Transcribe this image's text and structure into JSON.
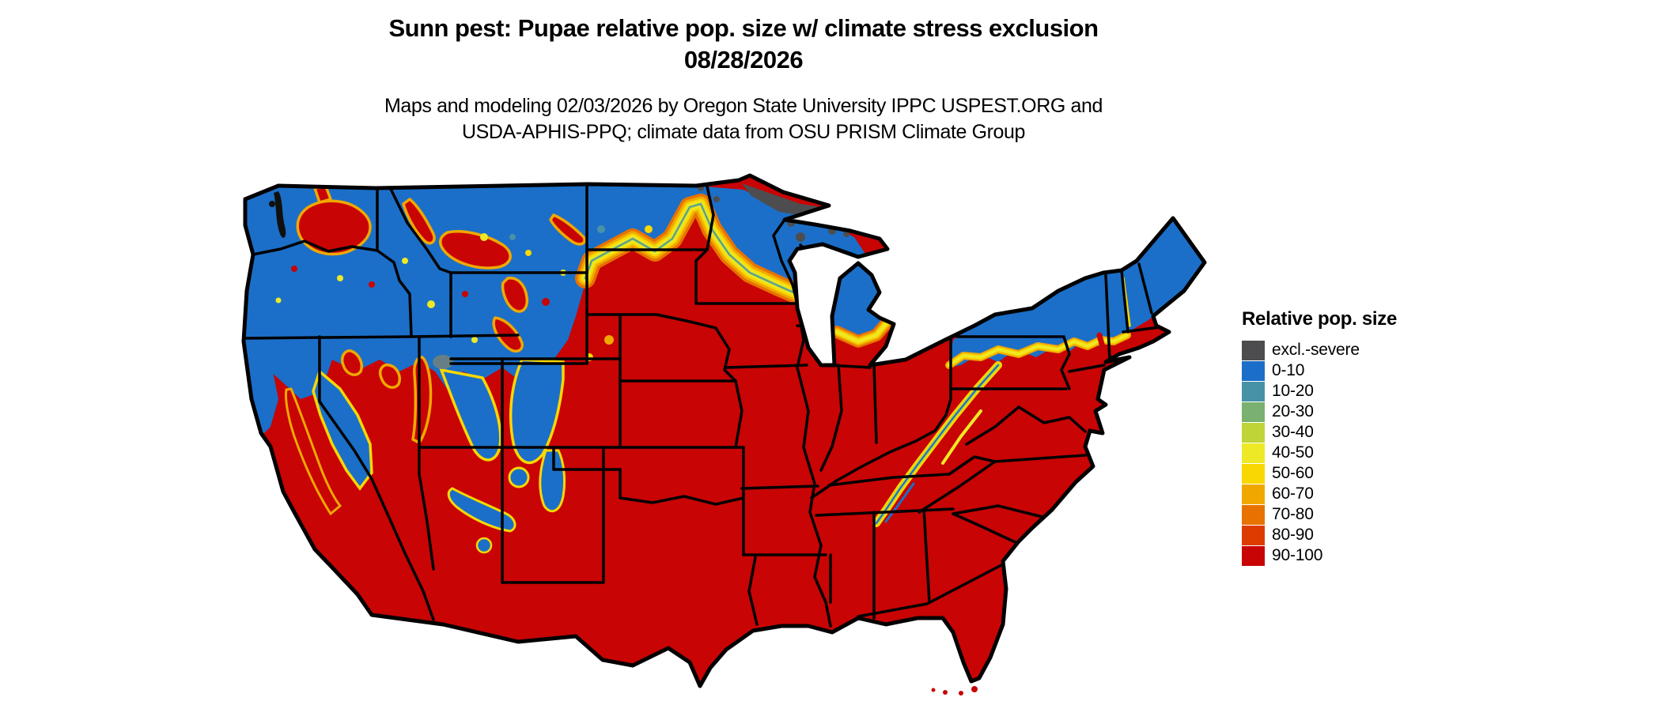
{
  "title": {
    "line1": "Sunn pest: Pupae relative pop. size w/ climate stress exclusion",
    "line2": "08/28/2026"
  },
  "subtitle": {
    "line1": "Maps and modeling 02/03/2026 by Oregon State University IPPC USPEST.ORG and",
    "line2": "USDA-APHIS-PPQ; climate data from OSU PRISM Climate Group"
  },
  "legend": {
    "title": "Relative pop. size",
    "items": [
      {
        "label": "excl.-severe",
        "color": "#4D4D50"
      },
      {
        "label": "0-10",
        "color": "#1B6FC8"
      },
      {
        "label": "10-20",
        "color": "#4892A6"
      },
      {
        "label": "20-30",
        "color": "#7AB070"
      },
      {
        "label": "30-40",
        "color": "#BED437"
      },
      {
        "label": "40-50",
        "color": "#EEE926"
      },
      {
        "label": "50-60",
        "color": "#F8D800"
      },
      {
        "label": "60-70",
        "color": "#F0A800"
      },
      {
        "label": "70-80",
        "color": "#E87200"
      },
      {
        "label": "80-90",
        "color": "#DC3C00"
      },
      {
        "label": "90-100",
        "color": "#C80404"
      }
    ]
  },
  "map": {
    "type": "choropleth raster map",
    "area": "contiguous United States with state boundaries",
    "border_color": "#000000",
    "background_color": "#ffffff",
    "dominant_low_color": "#1B6FC8",
    "dominant_high_color": "#C80404",
    "exclusion_color": "#4D4D50"
  }
}
